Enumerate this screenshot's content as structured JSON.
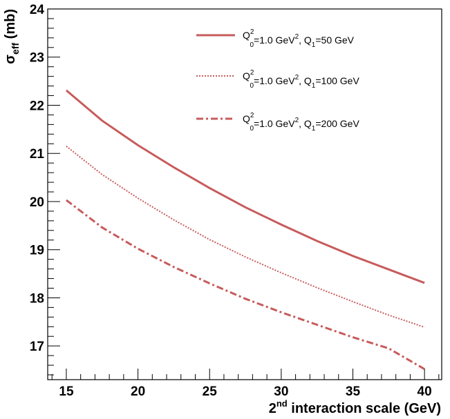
{
  "chart_data": {
    "type": "line",
    "x_axis": {
      "title": {
        "prefix": "2",
        "sup": "nd",
        "suffix": " interaction scale (GeV)"
      },
      "range": [
        13.7,
        41.2
      ],
      "major_ticks": [
        15,
        20,
        25,
        30,
        35,
        40
      ],
      "tick_labels": [
        "15",
        "20",
        "25",
        "30",
        "35",
        "40"
      ],
      "minor_step": 1
    },
    "y_axis": {
      "title": {
        "symbol": "σ",
        "sub": "eff",
        "unit": " (mb)"
      },
      "range": [
        16.3,
        24.0
      ],
      "major_ticks": [
        17,
        18,
        19,
        20,
        21,
        22,
        23,
        24
      ],
      "tick_labels": [
        "17",
        "18",
        "19",
        "20",
        "21",
        "22",
        "23",
        "24"
      ],
      "minor_step": 0.2
    },
    "grid": false,
    "legend_position": "top-right",
    "series": [
      {
        "legend": {
          "q_base": "Q",
          "q_sub": "0",
          "q_sup": "2",
          "mid": "=1.0 GeV",
          "mid_sup": "2",
          "q1_text": ", Q",
          "q1_sub": "1",
          "q1_val": "=50 GeV"
        },
        "style": "solid",
        "color": "#c75b5b",
        "x": [
          15,
          17.5,
          20,
          22.5,
          25,
          27.5,
          30,
          32.5,
          35,
          37.5,
          40
        ],
        "y": [
          22.31,
          21.68,
          21.17,
          20.71,
          20.28,
          19.88,
          19.52,
          19.18,
          18.87,
          18.59,
          18.31
        ]
      },
      {
        "legend": {
          "q_base": "Q",
          "q_sub": "0",
          "q_sup": "2",
          "mid": "=1.0 GeV",
          "mid_sup": "2",
          "q1_text": ", Q",
          "q1_sub": "1",
          "q1_val": "=100 GeV"
        },
        "style": "dotted",
        "color": "#c75b5b",
        "x": [
          15,
          17.5,
          20,
          22.5,
          25,
          27.5,
          30,
          32.5,
          35,
          37.5,
          40
        ],
        "y": [
          21.15,
          20.56,
          20.07,
          19.62,
          19.21,
          18.85,
          18.52,
          18.21,
          17.92,
          17.64,
          17.39
        ]
      },
      {
        "legend": {
          "q_base": "Q",
          "q_sub": "0",
          "q_sup": "2",
          "mid": "=1.0 GeV",
          "mid_sup": "2",
          "q1_text": ", Q",
          "q1_sub": "1",
          "q1_val": "=200 GeV"
        },
        "style": "dash-dot",
        "color": "#c75b5b",
        "x": [
          15,
          17.5,
          20,
          22.5,
          25,
          27.5,
          30,
          32.5,
          35,
          37.5,
          40
        ],
        "y": [
          20.03,
          19.46,
          19.02,
          18.64,
          18.3,
          17.98,
          17.7,
          17.44,
          17.18,
          16.95,
          16.52
        ]
      }
    ]
  }
}
